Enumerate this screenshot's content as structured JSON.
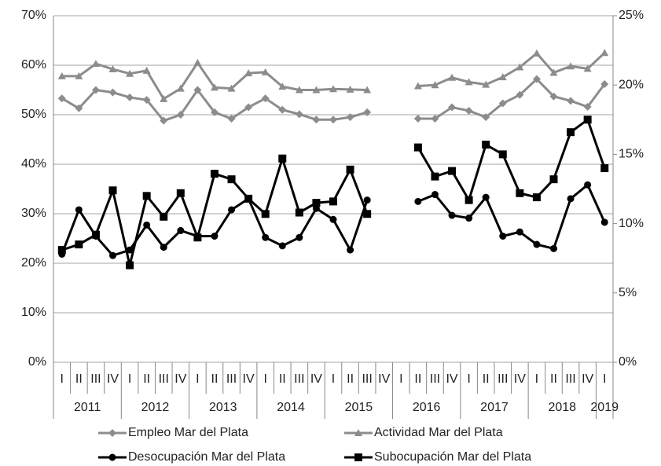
{
  "chart_data": {
    "type": "line",
    "categories": [
      "I",
      "II",
      "III",
      "IV",
      "I",
      "II",
      "III",
      "IV",
      "I",
      "II",
      "III",
      "IV",
      "I",
      "II",
      "III",
      "IV",
      "I",
      "II",
      "III",
      "IV",
      "I",
      "II",
      "III",
      "IV",
      "I",
      "II",
      "III",
      "IV",
      "I",
      "II",
      "III",
      "IV",
      "I"
    ],
    "x_groups": [
      "2011",
      "2012",
      "2013",
      "2014",
      "2015",
      "2016",
      "2017",
      "2018",
      "2019"
    ],
    "ylim": [
      0,
      70
    ],
    "yticks": [
      {
        "value": 0,
        "label": "0%"
      },
      {
        "value": 10,
        "label": "10%"
      },
      {
        "value": 20,
        "label": "20%"
      },
      {
        "value": 30,
        "label": "30%"
      },
      {
        "value": 40,
        "label": "40%"
      },
      {
        "value": 50,
        "label": "50%"
      },
      {
        "value": 60,
        "label": "60%"
      },
      {
        "value": 70,
        "label": "70%"
      }
    ],
    "y2lim": [
      0,
      25
    ],
    "y2ticks": [
      {
        "value": 0,
        "label": "0%"
      },
      {
        "value": 5,
        "label": "5%"
      },
      {
        "value": 10,
        "label": "10%"
      },
      {
        "value": 15,
        "label": "15%"
      },
      {
        "value": 20,
        "label": "20%"
      },
      {
        "value": 25,
        "label": "25%"
      }
    ],
    "grid": true,
    "legend": "bottom",
    "series": [
      {
        "name": "Empleo Mar del Plata",
        "color": "#8c8c8c",
        "marker": "diamond",
        "values": [
          53.3,
          51.3,
          55,
          54.5,
          53.5,
          53,
          48.8,
          50,
          55,
          50.5,
          49.2,
          51.5,
          53.3,
          51,
          50.1,
          49,
          49,
          49.5,
          50.5,
          null,
          null,
          49.2,
          49.2,
          51.5,
          50.8,
          49.5,
          52.3,
          54,
          57.2,
          53.7,
          52.8,
          51.6,
          56.2
        ]
      },
      {
        "name": "Actividad Mar del Plata",
        "color": "#8c8c8c",
        "marker": "triangle",
        "values": [
          57.8,
          57.8,
          60.3,
          59.2,
          58.3,
          58.9,
          53.2,
          55.3,
          60.5,
          55.5,
          55.3,
          58.4,
          58.6,
          55.7,
          55,
          55,
          55.2,
          55.1,
          55,
          null,
          null,
          55.8,
          56,
          57.5,
          56.6,
          56.1,
          57.6,
          59.6,
          62.4,
          58.5,
          59.8,
          59.3,
          62.5
        ]
      },
      {
        "name": "Desocupación Mar del Plata",
        "color": "#000000",
        "marker": "circle",
        "axis": "y2",
        "values": [
          7.8,
          11,
          9.1,
          7.7,
          8.1,
          9.9,
          8.3,
          9.5,
          9.1,
          9.1,
          11,
          11.8,
          9,
          8.4,
          9,
          11.1,
          10.3,
          8.1,
          11.7,
          null,
          null,
          11.6,
          12.1,
          10.6,
          10.4,
          11.9,
          9.1,
          9.4,
          8.5,
          8.2,
          11.8,
          12.8,
          10.1
        ]
      },
      {
        "name": "Subocupación Mar del Plata",
        "color": "#000000",
        "marker": "square",
        "axis": "y2",
        "values": [
          8.1,
          8.5,
          9.2,
          12.4,
          7,
          12,
          10.5,
          12.2,
          9,
          13.6,
          13.2,
          11.8,
          10.7,
          14.7,
          10.8,
          11.5,
          11.6,
          13.9,
          10.7,
          null,
          null,
          15.5,
          13.4,
          13.8,
          11.7,
          15.7,
          15,
          12.2,
          11.9,
          13.2,
          16.6,
          17.5,
          14
        ]
      }
    ]
  }
}
